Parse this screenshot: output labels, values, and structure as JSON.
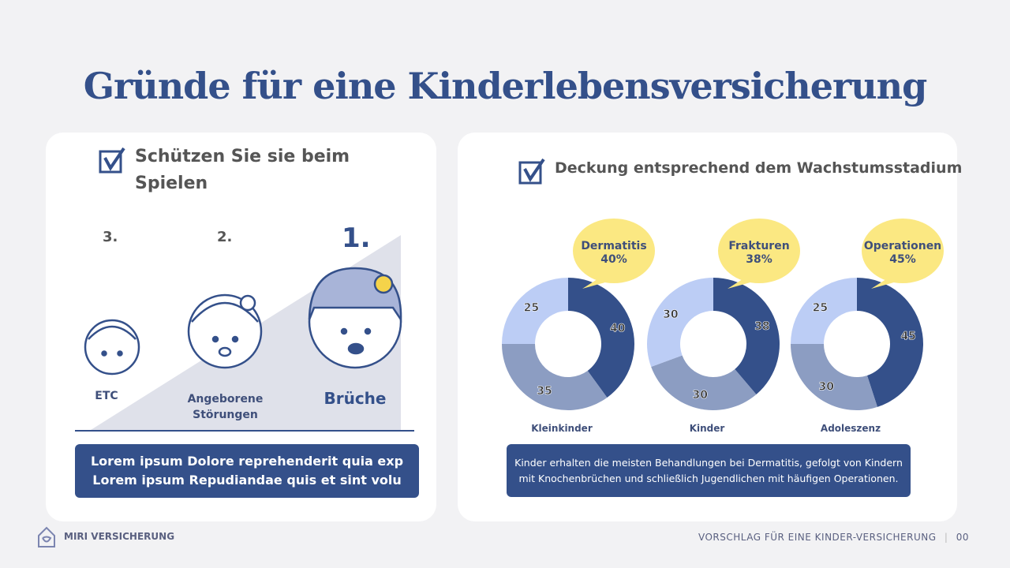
{
  "title": "Gründe für eine Kinderlebensversicherung",
  "left": {
    "heading": "Schützen Sie sie beim Spielen",
    "ranks": [
      {
        "rank": "3.",
        "label": "ETC"
      },
      {
        "rank": "2.",
        "label": "Angeborene Störungen"
      },
      {
        "rank": "1.",
        "label": "Brüche"
      }
    ],
    "text_lines": [
      "Lorem ipsum Dolore reprehenderit quia exp",
      "Lorem ipsum Repudiandae quis et sint volu"
    ]
  },
  "right": {
    "heading": "Deckung entsprechend dem Wachstumsstadium",
    "summary": "Kinder erhalten die meisten Behandlungen bei Dermatitis, gefolgt von Kindern mit Knochenbrüchen und schließlich Jugendlichen mit häufigen Operationen."
  },
  "chart_data": [
    {
      "type": "pie",
      "donut": true,
      "title": "Kleinkinder",
      "values": [
        40,
        35,
        25
      ],
      "callout": {
        "name": "Dermatitis",
        "value": "40%"
      }
    },
    {
      "type": "pie",
      "donut": true,
      "title": "Kinder",
      "values": [
        38,
        30,
        30
      ],
      "callout": {
        "name": "Frakturen",
        "value": "38%"
      }
    },
    {
      "type": "pie",
      "donut": true,
      "title": "Adoleszenz",
      "values": [
        45,
        30,
        25
      ],
      "callout": {
        "name": "Operationen",
        "value": "45%"
      }
    }
  ],
  "colors": {
    "dark": "#34508a",
    "mid": "#8c9dc2",
    "light": "#bccdf5",
    "bubble": "#fbe882",
    "accent": "#34508a"
  },
  "footer": {
    "brand": "MIRI VERSICHERUNG",
    "right": "VORSCHLAG FÜR EINE KINDER-VERSICHERUNG",
    "page": "00"
  }
}
